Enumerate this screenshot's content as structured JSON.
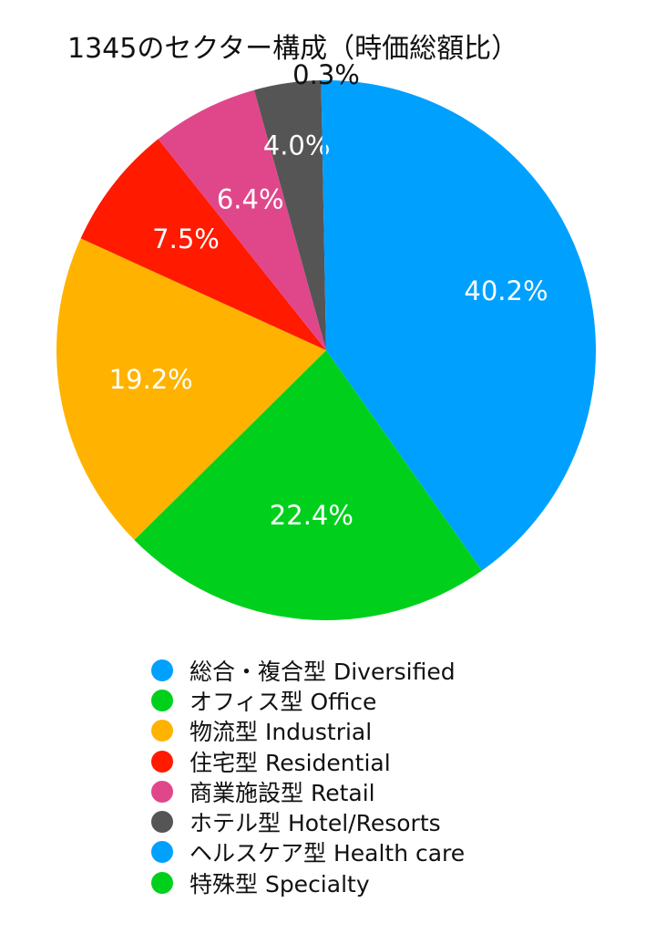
{
  "chart_data": {
    "type": "pie",
    "title": "1345のセクター構成（時価総額比）",
    "slices": [
      {
        "name": "総合・複合型 Diversified",
        "value": 40.2,
        "label": "40.2%",
        "color": "#00A0FF",
        "label_color": "#ffffff"
      },
      {
        "name": "オフィス型 Office",
        "value": 22.4,
        "label": "22.4%",
        "color": "#00D01C",
        "label_color": "#ffffff"
      },
      {
        "name": "物流型 Industrial",
        "value": 19.2,
        "label": "19.2%",
        "color": "#FFB300",
        "label_color": "#ffffff"
      },
      {
        "name": "住宅型 Residential",
        "value": 7.5,
        "label": "7.5%",
        "color": "#FF1A00",
        "label_color": "#ffffff"
      },
      {
        "name": "商業施設型 Retail",
        "value": 6.4,
        "label": "6.4%",
        "color": "#E0478A",
        "label_color": "#ffffff"
      },
      {
        "name": "ホテル型 Hotel/Resorts",
        "value": 4.0,
        "label": "4.0%",
        "color": "#555555",
        "label_color": "#ffffff"
      },
      {
        "name": "ヘルスケア型 Health care",
        "value": 0.3,
        "label": "0.3%",
        "color": "#00A0FF",
        "label_color": "#111111"
      },
      {
        "name": "特殊型 Specialty",
        "value": 0.0,
        "label": "",
        "color": "#00D01C",
        "label_color": "#ffffff"
      }
    ],
    "legend_position": "bottom",
    "start_angle": "top",
    "direction": "clockwise"
  }
}
